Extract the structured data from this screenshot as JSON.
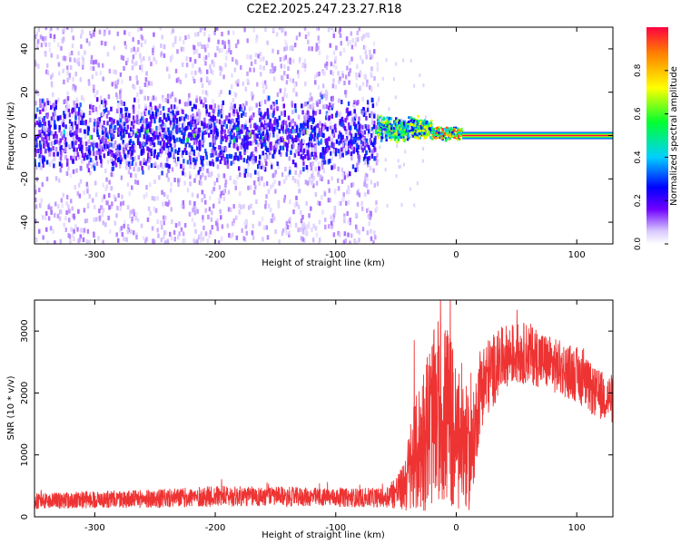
{
  "title": "C2E2.2025.247.23.27.R18",
  "chart_data": [
    {
      "type": "heatmap",
      "xlabel": "Height of straight line (km)",
      "ylabel": "Frequency (Hz)",
      "xlim": [
        -350,
        130
      ],
      "ylim": [
        -50,
        50
      ],
      "x_ticks": [
        -300,
        -200,
        -100,
        0,
        100
      ],
      "y_ticks": [
        -40,
        -20,
        0,
        20,
        40
      ],
      "colorbar": {
        "label": "Normalized spectral amplitude",
        "range": [
          0,
          1
        ],
        "ticks": [
          "0.0",
          "0.2",
          "0.4",
          "0.6",
          "0.8"
        ]
      },
      "regions": [
        {
          "x_range": [
            -350,
            -65
          ],
          "description_values": {
            "core_halfwidth_hz": 8,
            "scatter_halfwidth_hz": 50,
            "peak_amplitude": 0.45
          }
        },
        {
          "x_range": [
            -65,
            -20
          ],
          "description_values": {
            "center_hz": 3,
            "peak_amplitude": 0.55
          }
        },
        {
          "x_range": [
            -20,
            5
          ],
          "description_values": {
            "center_hz": 1,
            "peak_amplitude": 0.75
          }
        },
        {
          "x_range": [
            5,
            130
          ],
          "description_values": {
            "center_hz": 0,
            "peak_amplitude": 1.0
          }
        }
      ],
      "colors": [
        "#ffffff",
        "#e6d8ff",
        "#a070ff",
        "#6a00e0",
        "#2a00ff",
        "#00c8ff",
        "#00ff40",
        "#ffff00",
        "#ff0000"
      ]
    },
    {
      "type": "line",
      "xlabel": "Height of straight line (km)",
      "ylabel": "SNR (10 * v/v)",
      "xlim": [
        -350,
        130
      ],
      "ylim": [
        0,
        3500
      ],
      "x_ticks": [
        -300,
        -200,
        -100,
        0,
        100
      ],
      "y_ticks": [
        0,
        1000,
        2000,
        3000
      ],
      "series_color": "#ee3333",
      "envelope": [
        {
          "x": -350,
          "base": 250,
          "noise": 130
        },
        {
          "x": -300,
          "base": 280,
          "noise": 140
        },
        {
          "x": -250,
          "base": 290,
          "noise": 150
        },
        {
          "x": -200,
          "base": 330,
          "noise": 170
        },
        {
          "x": -150,
          "base": 330,
          "noise": 160
        },
        {
          "x": -100,
          "base": 310,
          "noise": 150
        },
        {
          "x": -60,
          "base": 310,
          "noise": 160
        },
        {
          "x": -45,
          "base": 450,
          "noise": 350
        },
        {
          "x": -35,
          "base": 900,
          "noise": 900
        },
        {
          "x": -25,
          "base": 1400,
          "noise": 1300
        },
        {
          "x": -15,
          "base": 1700,
          "noise": 1500
        },
        {
          "x": -5,
          "base": 1600,
          "noise": 1500
        },
        {
          "x": 0,
          "base": 1200,
          "noise": 1200
        },
        {
          "x": 5,
          "base": 1300,
          "noise": 1200
        },
        {
          "x": 12,
          "base": 900,
          "noise": 800
        },
        {
          "x": 20,
          "base": 2100,
          "noise": 700
        },
        {
          "x": 40,
          "base": 2600,
          "noise": 500
        },
        {
          "x": 60,
          "base": 2650,
          "noise": 500
        },
        {
          "x": 80,
          "base": 2450,
          "noise": 450
        },
        {
          "x": 100,
          "base": 2300,
          "noise": 450
        },
        {
          "x": 115,
          "base": 2000,
          "noise": 400
        },
        {
          "x": 130,
          "base": 1900,
          "noise": 400
        }
      ]
    }
  ]
}
